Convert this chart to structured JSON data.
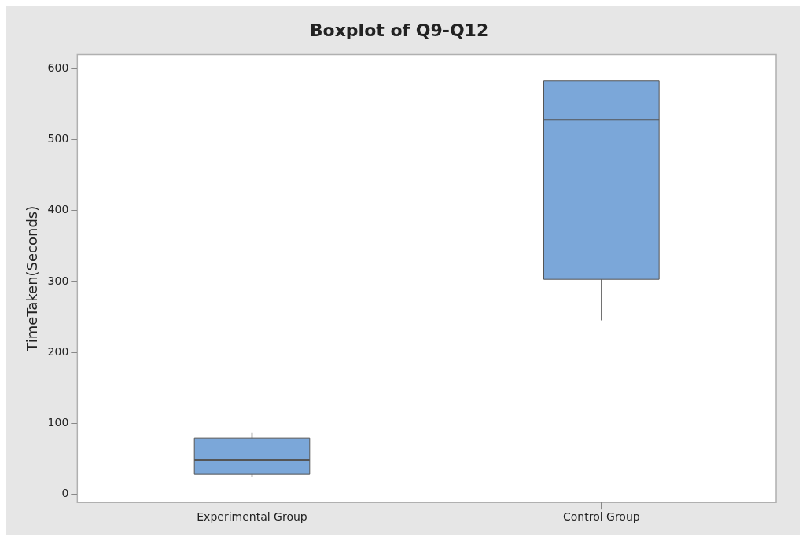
{
  "chart_data": {
    "type": "box",
    "title": "Boxplot of Q9-Q12",
    "ylabel": "TimeTaken(Seconds)",
    "categories": [
      "Experimental Group",
      "Control Group"
    ],
    "boxes": [
      {
        "low": 24,
        "q1": 28,
        "median": 48,
        "q3": 79,
        "high": 86
      },
      {
        "low": 245,
        "q1": 303,
        "median": 528,
        "q3": 583,
        "high": 583
      }
    ],
    "color": "#7ba7d9",
    "ylim": [
      -12,
      620
    ],
    "yticks": [
      0,
      100,
      200,
      300,
      400,
      500,
      600
    ],
    "grid": false,
    "legend": false
  }
}
